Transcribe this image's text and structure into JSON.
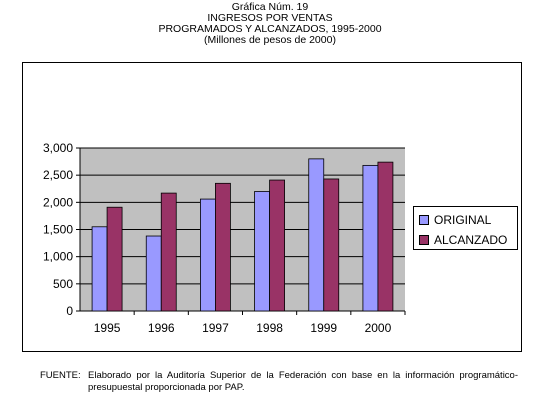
{
  "titles": {
    "line1": "Gráfica Núm. 19",
    "line2": "INGRESOS POR VENTAS",
    "line3": "PROGRAMADOS Y ALCANZADOS, 1995-2000",
    "line4": "(Millones de pesos de 2000)"
  },
  "source": {
    "label": "FUENTE:",
    "text": "Elaborado por la Auditoría Superior de la Federación con base en la información programático-presupuestal proporcionada por PAP."
  },
  "colors": {
    "original": "#9999ff",
    "alcanzado": "#993366",
    "plot_bg": "#c0c0c0"
  },
  "chart_data": {
    "type": "bar",
    "categories": [
      "1995",
      "1996",
      "1997",
      "1998",
      "1999",
      "2000"
    ],
    "series": [
      {
        "name": "ORIGINAL",
        "values": [
          1550,
          1380,
          2060,
          2200,
          2800,
          2680
        ]
      },
      {
        "name": "ALCANZADO",
        "values": [
          1910,
          2170,
          2350,
          2410,
          2430,
          2740
        ]
      }
    ],
    "yticks": [
      "0",
      "500",
      "1,000",
      "1,500",
      "2,000",
      "2,500",
      "3,000"
    ],
    "ylim": [
      0,
      3000
    ],
    "grid": true,
    "legend_position": "right"
  }
}
